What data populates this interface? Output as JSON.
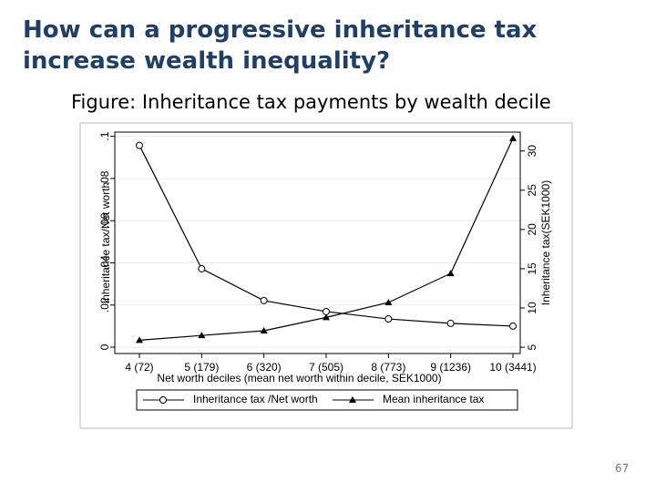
{
  "slide": {
    "title": "How can a progressive inheritance tax increase wealth inequality?",
    "caption": "Figure: Inheritance tax payments by wealth decile",
    "page_number": "67"
  },
  "chart_data": {
    "type": "line",
    "xlabel": "Net worth deciles (mean net worth within decile, SEK1000)",
    "ylabel": "Inheritance tax/Net worth",
    "y2label": "Inheritance tax(SEK1000)",
    "categories": [
      "4 (72)",
      "5 (179)",
      "6 (320)",
      "7 (505)",
      "8 (773)",
      "9 (1236)",
      "10 (3441)"
    ],
    "ylim": [
      -0.003,
      0.102
    ],
    "yticks": [
      0,
      {
        "value": 0.02,
        "label": ".02"
      },
      {
        "value": 0.04,
        "label": ".04"
      },
      {
        "value": 0.06,
        "label": ".06"
      },
      {
        "value": 0.08,
        "label": ".08"
      },
      {
        "value": 0.1,
        "label": ".1"
      }
    ],
    "y2lim": [
      4.2,
      32.4
    ],
    "y2ticks": [
      5,
      10,
      15,
      20,
      25,
      30
    ],
    "grid": true,
    "legend": "bottom",
    "series": [
      {
        "name": "Inheritance tax /Net worth",
        "color": "#000000",
        "marker": "circle",
        "values": [
          0.0957,
          0.0372,
          0.0221,
          0.0169,
          0.0134,
          0.0113,
          0.01
        ]
      },
      {
        "name": "Mean inheritance tax",
        "color": "#000000",
        "marker": "triangle",
        "axis": "y2",
        "values": [
          5.9,
          6.5,
          7.1,
          8.8,
          10.7,
          14.4,
          31.6
        ]
      }
    ]
  }
}
